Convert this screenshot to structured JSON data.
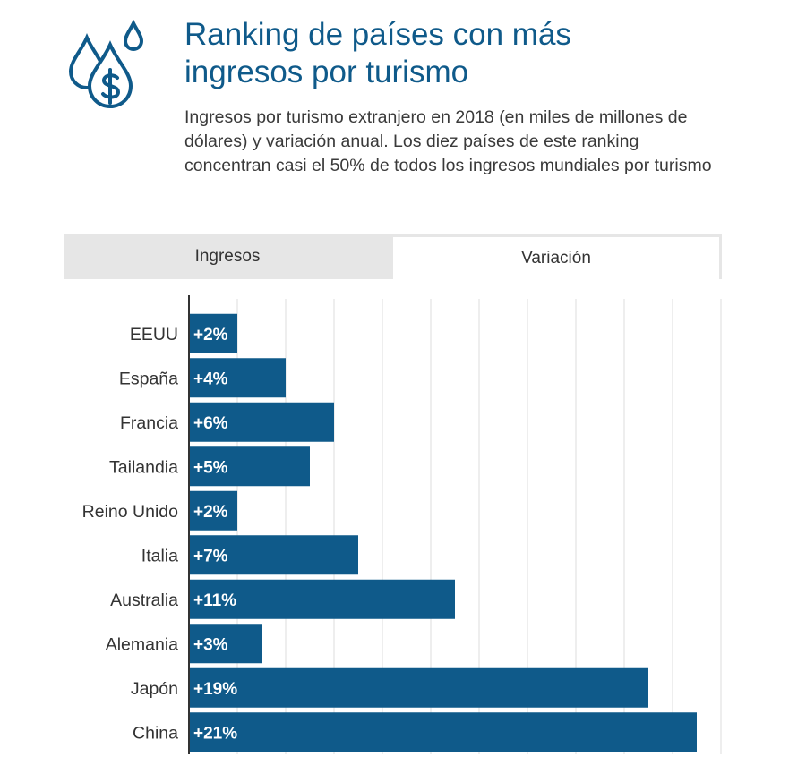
{
  "header": {
    "icon": "money-drops-icon",
    "title": "Ranking de países con más ingresos por turismo",
    "subtitle": "Ingresos por turismo extranjero en 2018 (en miles de millones de dólares) y variación anual. Los diez países de este ranking concentran casi el 50% de todos los ingresos mundiales por turismo"
  },
  "tabs": [
    {
      "label": "Ingresos",
      "active": false
    },
    {
      "label": "Variación",
      "active": true
    }
  ],
  "colors": {
    "accent": "#0f5a8a",
    "bar": "#0f5a8a",
    "grid": "#dcdcdc",
    "tab_bg": "#e6e6e6"
  },
  "chart_data": {
    "type": "bar",
    "orientation": "horizontal",
    "categories": [
      "EEUU",
      "España",
      "Francia",
      "Tailandia",
      "Reino Unido",
      "Italia",
      "Australia",
      "Alemania",
      "Japón",
      "China"
    ],
    "values": [
      2,
      4,
      6,
      5,
      2,
      7,
      11,
      3,
      19,
      21
    ],
    "data_labels": [
      "+2%",
      "+4%",
      "+6%",
      "+5%",
      "+2%",
      "+7%",
      "+11%",
      "+3%",
      "+19%",
      "+21%"
    ],
    "unit": "%",
    "xlim": [
      0,
      22
    ],
    "grid": true
  }
}
